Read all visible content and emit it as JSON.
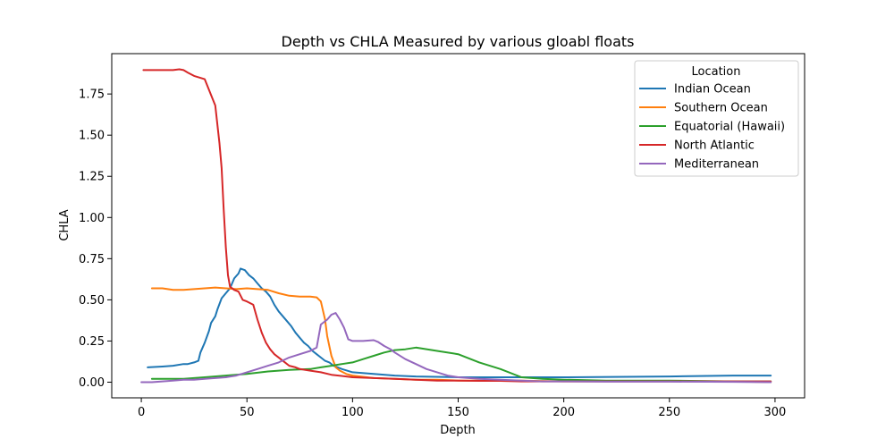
{
  "chart_data": {
    "type": "line",
    "title": "Depth vs CHLA Measured by various gloabl floats",
    "xlabel": "Depth",
    "ylabel": "CHLA",
    "xlim": [
      -14,
      314
    ],
    "ylim": [
      -0.095,
      1.995
    ],
    "xticks": [
      0,
      50,
      100,
      150,
      200,
      250,
      300
    ],
    "yticks": [
      0.0,
      0.25,
      0.5,
      0.75,
      1.0,
      1.25,
      1.5,
      1.75
    ],
    "ytick_labels": [
      "0.00",
      "0.25",
      "0.50",
      "0.75",
      "1.00",
      "1.25",
      "1.50",
      "1.75"
    ],
    "grid": false,
    "legend_title": "Location",
    "legend_placement": "top-right",
    "series": [
      {
        "name": "Indian Ocean",
        "color": "#1f77b4",
        "x": [
          3,
          10,
          15,
          20,
          22,
          25,
          27,
          28,
          30,
          32,
          33,
          35,
          36,
          38,
          40,
          42,
          44,
          46,
          47,
          49,
          51,
          53,
          55,
          57,
          59,
          61,
          63,
          65,
          67,
          69,
          71,
          73,
          75,
          77,
          79,
          81,
          83,
          85,
          87,
          89,
          91,
          93,
          95,
          100,
          110,
          120,
          130,
          150,
          200,
          250,
          280,
          298
        ],
        "y": [
          0.09,
          0.095,
          0.1,
          0.11,
          0.11,
          0.12,
          0.13,
          0.18,
          0.24,
          0.31,
          0.36,
          0.4,
          0.44,
          0.51,
          0.54,
          0.57,
          0.63,
          0.66,
          0.69,
          0.68,
          0.65,
          0.63,
          0.6,
          0.57,
          0.55,
          0.52,
          0.47,
          0.43,
          0.4,
          0.37,
          0.34,
          0.3,
          0.27,
          0.24,
          0.22,
          0.19,
          0.17,
          0.15,
          0.13,
          0.12,
          0.1,
          0.09,
          0.08,
          0.06,
          0.05,
          0.04,
          0.035,
          0.03,
          0.03,
          0.035,
          0.04,
          0.04
        ]
      },
      {
        "name": "Southern Ocean",
        "color": "#ff7f0e",
        "x": [
          5,
          10,
          15,
          20,
          25,
          30,
          35,
          40,
          45,
          50,
          55,
          60,
          65,
          70,
          75,
          80,
          83,
          85,
          87,
          88,
          90,
          92,
          94,
          97,
          100,
          110,
          120,
          130,
          140,
          150,
          160,
          180,
          200,
          220,
          240,
          260,
          280,
          298
        ],
        "y": [
          0.57,
          0.57,
          0.56,
          0.56,
          0.565,
          0.57,
          0.575,
          0.57,
          0.565,
          0.57,
          0.565,
          0.56,
          0.54,
          0.525,
          0.52,
          0.52,
          0.515,
          0.49,
          0.38,
          0.28,
          0.16,
          0.09,
          0.07,
          0.05,
          0.04,
          0.025,
          0.02,
          0.015,
          0.015,
          0.01,
          0.01,
          0.01,
          0.005,
          0.005,
          0.005,
          0.005,
          0.005,
          0.0
        ]
      },
      {
        "name": "Equatorial (Hawaii)",
        "color": "#2ca02c",
        "x": [
          5,
          10,
          20,
          30,
          40,
          50,
          60,
          70,
          80,
          85,
          90,
          95,
          100,
          105,
          110,
          115,
          120,
          125,
          130,
          140,
          150,
          160,
          170,
          180,
          190,
          200,
          220,
          250,
          280,
          298
        ],
        "y": [
          0.02,
          0.02,
          0.02,
          0.03,
          0.04,
          0.05,
          0.065,
          0.075,
          0.08,
          0.09,
          0.1,
          0.11,
          0.12,
          0.14,
          0.16,
          0.18,
          0.195,
          0.2,
          0.21,
          0.19,
          0.17,
          0.12,
          0.08,
          0.03,
          0.02,
          0.015,
          0.01,
          0.01,
          0.005,
          0.005
        ]
      },
      {
        "name": "North Atlantic",
        "color": "#d62728",
        "x": [
          1,
          5,
          10,
          15,
          18,
          20,
          22,
          25,
          30,
          35,
          37,
          38,
          39,
          40,
          41,
          42,
          44,
          46,
          48,
          50,
          53,
          55,
          57,
          59,
          61,
          63,
          65,
          68,
          70,
          73,
          75,
          80,
          85,
          90,
          100,
          110,
          120,
          130,
          140,
          150,
          160,
          170,
          180,
          200,
          220,
          250,
          280,
          298
        ],
        "y": [
          1.895,
          1.895,
          1.895,
          1.895,
          1.9,
          1.895,
          1.88,
          1.86,
          1.84,
          1.68,
          1.45,
          1.3,
          1.05,
          0.82,
          0.65,
          0.58,
          0.56,
          0.55,
          0.5,
          0.49,
          0.47,
          0.38,
          0.3,
          0.24,
          0.2,
          0.17,
          0.15,
          0.12,
          0.1,
          0.09,
          0.08,
          0.07,
          0.06,
          0.045,
          0.03,
          0.025,
          0.02,
          0.015,
          0.01,
          0.01,
          0.008,
          0.008,
          0.005,
          0.005,
          0.005,
          0.005,
          0.005,
          0.005
        ]
      },
      {
        "name": "Mediterranean",
        "color": "#9467bd",
        "x": [
          0,
          5,
          10,
          15,
          20,
          25,
          30,
          35,
          40,
          45,
          50,
          55,
          60,
          65,
          70,
          75,
          80,
          83,
          85,
          88,
          90,
          92,
          94,
          96,
          98,
          100,
          105,
          110,
          112,
          115,
          118,
          120,
          125,
          130,
          135,
          140,
          145,
          150,
          160,
          170,
          180,
          190,
          200,
          220,
          250,
          280,
          298
        ],
        "y": [
          0.0,
          0.0,
          0.005,
          0.01,
          0.015,
          0.015,
          0.02,
          0.025,
          0.03,
          0.04,
          0.06,
          0.08,
          0.1,
          0.12,
          0.15,
          0.17,
          0.19,
          0.21,
          0.35,
          0.38,
          0.41,
          0.42,
          0.38,
          0.33,
          0.26,
          0.25,
          0.25,
          0.255,
          0.245,
          0.22,
          0.2,
          0.18,
          0.14,
          0.11,
          0.08,
          0.06,
          0.04,
          0.03,
          0.02,
          0.015,
          0.01,
          0.005,
          0.005,
          0.003,
          0.003,
          0.002,
          0.0
        ]
      }
    ]
  }
}
